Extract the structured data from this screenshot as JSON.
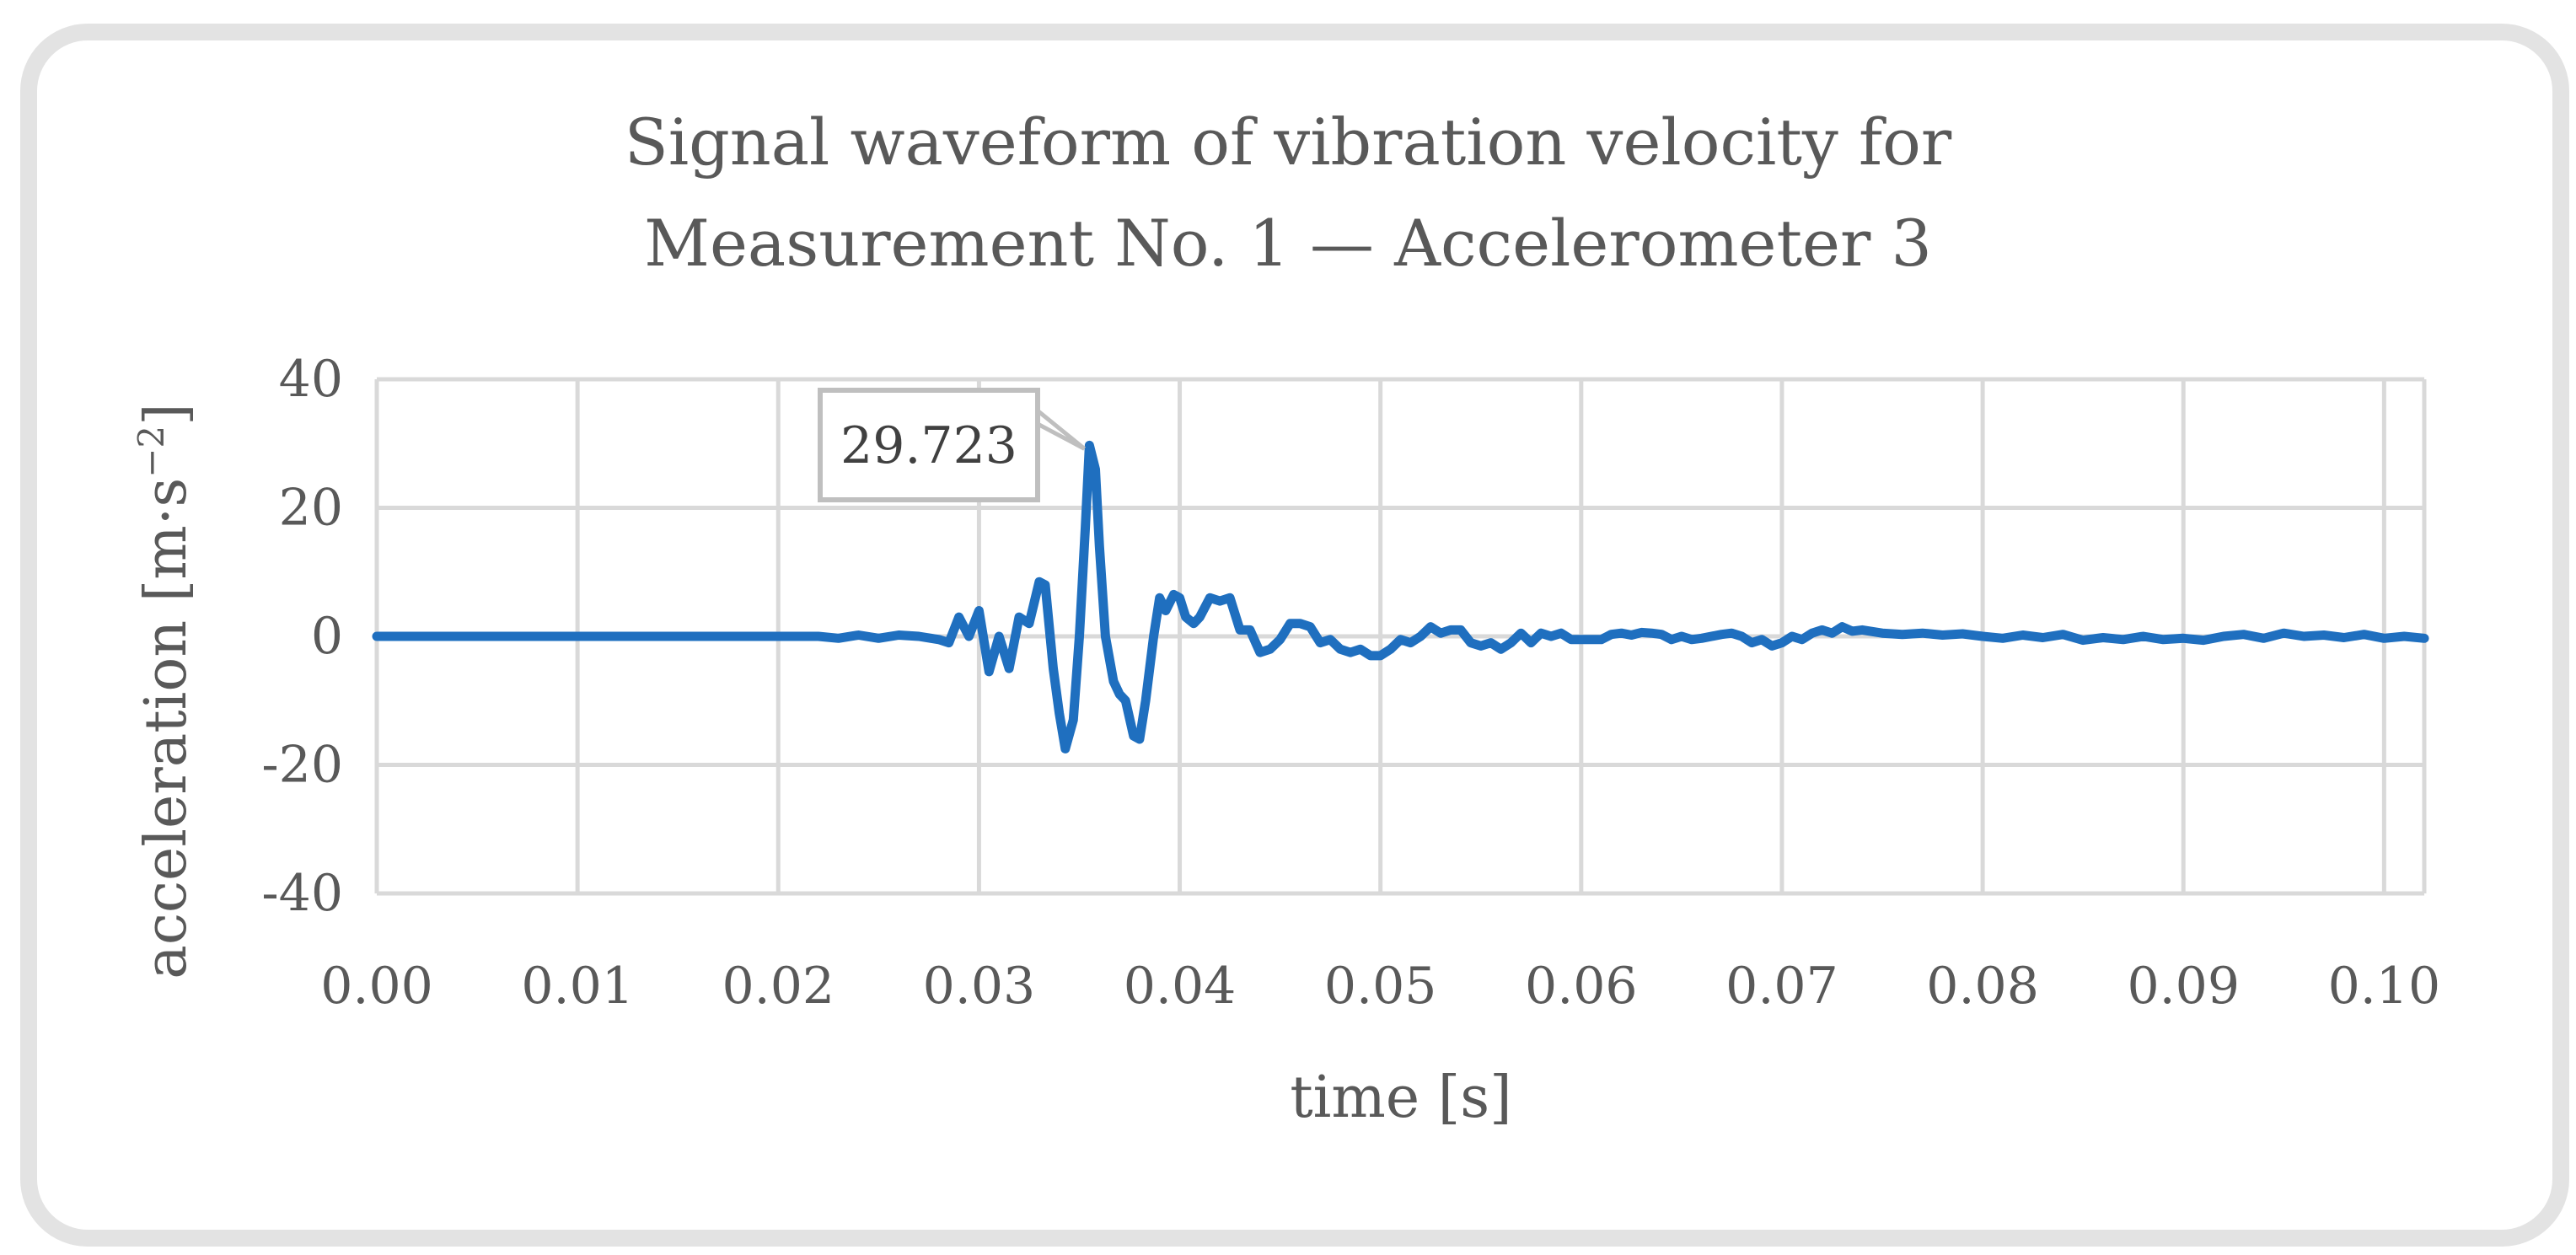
{
  "chart_data": {
    "type": "line",
    "title_lines": [
      "Signal waveform of vibration velocity for",
      "Measurement No. 1 — Accelerometer 3"
    ],
    "xlabel": "time [s]",
    "ylabel": "acceleration [m·s",
    "ylabel_sup": "−2",
    "ylabel_close": "]",
    "xlim": [
      0,
      0.102
    ],
    "ylim": [
      -40,
      40
    ],
    "xticks": [
      0,
      0.01,
      0.02,
      0.03,
      0.04,
      0.05,
      0.06,
      0.07,
      0.08,
      0.09,
      0.1
    ],
    "xtick_labels": [
      "0.00",
      "0.01",
      "0.02",
      "0.03",
      "0.04",
      "0.05",
      "0.06",
      "0.07",
      "0.08",
      "0.09",
      "0.10"
    ],
    "yticks": [
      40,
      20,
      0,
      -20,
      -40
    ],
    "ytick_labels": [
      "40",
      "20",
      "0",
      "-20",
      "-40"
    ],
    "grid": true,
    "series": [
      {
        "name": "Accelerometer 3",
        "color": "#1f6fbf",
        "points": [
          [
            0,
            0
          ],
          [
            0.01,
            0
          ],
          [
            0.02,
            0
          ],
          [
            0.022,
            0
          ],
          [
            0.023,
            -0.3
          ],
          [
            0.024,
            0.2
          ],
          [
            0.025,
            -0.3
          ],
          [
            0.026,
            0.2
          ],
          [
            0.027,
            0
          ],
          [
            0.028,
            -0.5
          ],
          [
            0.0285,
            -1
          ],
          [
            0.029,
            3
          ],
          [
            0.0295,
            0
          ],
          [
            0.03,
            4
          ],
          [
            0.0305,
            -5.5
          ],
          [
            0.031,
            0
          ],
          [
            0.0315,
            -5
          ],
          [
            0.032,
            3
          ],
          [
            0.0325,
            2
          ],
          [
            0.033,
            8.5
          ],
          [
            0.0333,
            8
          ],
          [
            0.0337,
            -5
          ],
          [
            0.034,
            -12
          ],
          [
            0.0343,
            -17.5
          ],
          [
            0.0347,
            -13
          ],
          [
            0.035,
            0
          ],
          [
            0.0353,
            17
          ],
          [
            0.0355,
            29.723
          ],
          [
            0.0358,
            26
          ],
          [
            0.036,
            14
          ],
          [
            0.0363,
            0
          ],
          [
            0.0367,
            -7
          ],
          [
            0.037,
            -9
          ],
          [
            0.0373,
            -10
          ],
          [
            0.0377,
            -15.5
          ],
          [
            0.038,
            -16
          ],
          [
            0.0383,
            -10
          ],
          [
            0.0387,
            0
          ],
          [
            0.039,
            6
          ],
          [
            0.0393,
            4
          ],
          [
            0.0397,
            6.5
          ],
          [
            0.04,
            6
          ],
          [
            0.0403,
            3
          ],
          [
            0.0407,
            2
          ],
          [
            0.041,
            3
          ],
          [
            0.0415,
            6
          ],
          [
            0.042,
            5.5
          ],
          [
            0.0425,
            6
          ],
          [
            0.043,
            1
          ],
          [
            0.0435,
            1
          ],
          [
            0.044,
            -2.5
          ],
          [
            0.0445,
            -2
          ],
          [
            0.045,
            -0.5
          ],
          [
            0.0455,
            2
          ],
          [
            0.046,
            2
          ],
          [
            0.0465,
            1.5
          ],
          [
            0.047,
            -1
          ],
          [
            0.0475,
            -0.5
          ],
          [
            0.048,
            -2
          ],
          [
            0.0485,
            -2.5
          ],
          [
            0.049,
            -2
          ],
          [
            0.0495,
            -3
          ],
          [
            0.05,
            -3
          ],
          [
            0.0505,
            -2
          ],
          [
            0.051,
            -0.5
          ],
          [
            0.0515,
            -1
          ],
          [
            0.052,
            0
          ],
          [
            0.0525,
            1.5
          ],
          [
            0.053,
            0.5
          ],
          [
            0.0535,
            1
          ],
          [
            0.054,
            1
          ],
          [
            0.0545,
            -1
          ],
          [
            0.055,
            -1.5
          ],
          [
            0.0555,
            -1
          ],
          [
            0.056,
            -2
          ],
          [
            0.0565,
            -1
          ],
          [
            0.057,
            0.5
          ],
          [
            0.0575,
            -1
          ],
          [
            0.058,
            0.5
          ],
          [
            0.0585,
            0
          ],
          [
            0.059,
            0.5
          ],
          [
            0.0595,
            -0.5
          ],
          [
            0.06,
            -0.5
          ],
          [
            0.0605,
            -0.5
          ],
          [
            0.061,
            -0.5
          ],
          [
            0.0615,
            0.3
          ],
          [
            0.062,
            0.5
          ],
          [
            0.0625,
            0.2
          ],
          [
            0.063,
            0.6
          ],
          [
            0.0635,
            0.5
          ],
          [
            0.064,
            0.3
          ],
          [
            0.0645,
            -0.5
          ],
          [
            0.065,
            0
          ],
          [
            0.0655,
            -0.5
          ],
          [
            0.066,
            -0.3
          ],
          [
            0.067,
            0.3
          ],
          [
            0.0675,
            0.5
          ],
          [
            0.068,
            0
          ],
          [
            0.0685,
            -1
          ],
          [
            0.069,
            -0.5
          ],
          [
            0.0695,
            -1.5
          ],
          [
            0.07,
            -1
          ],
          [
            0.0705,
            0
          ],
          [
            0.071,
            -0.5
          ],
          [
            0.0715,
            0.5
          ],
          [
            0.072,
            1
          ],
          [
            0.0725,
            0.5
          ],
          [
            0.073,
            1.5
          ],
          [
            0.0735,
            0.8
          ],
          [
            0.074,
            1
          ],
          [
            0.075,
            0.5
          ],
          [
            0.076,
            0.3
          ],
          [
            0.077,
            0.5
          ],
          [
            0.078,
            0.2
          ],
          [
            0.079,
            0.4
          ],
          [
            0.08,
            0
          ],
          [
            0.081,
            -0.3
          ],
          [
            0.082,
            0.2
          ],
          [
            0.083,
            -0.2
          ],
          [
            0.084,
            0.3
          ],
          [
            0.085,
            -0.6
          ],
          [
            0.086,
            -0.2
          ],
          [
            0.087,
            -0.5
          ],
          [
            0.088,
            0
          ],
          [
            0.089,
            -0.5
          ],
          [
            0.09,
            -0.3
          ],
          [
            0.091,
            -0.6
          ],
          [
            0.092,
            0
          ],
          [
            0.093,
            0.3
          ],
          [
            0.094,
            -0.3
          ],
          [
            0.095,
            0.5
          ],
          [
            0.096,
            0
          ],
          [
            0.097,
            0.2
          ],
          [
            0.098,
            -0.2
          ],
          [
            0.099,
            0.3
          ],
          [
            0.1,
            -0.3
          ],
          [
            0.101,
            0
          ],
          [
            0.102,
            -0.3
          ]
        ]
      }
    ],
    "annotations": [
      {
        "label": "29.723",
        "x": 0.0355,
        "y": 29.723
      }
    ]
  }
}
